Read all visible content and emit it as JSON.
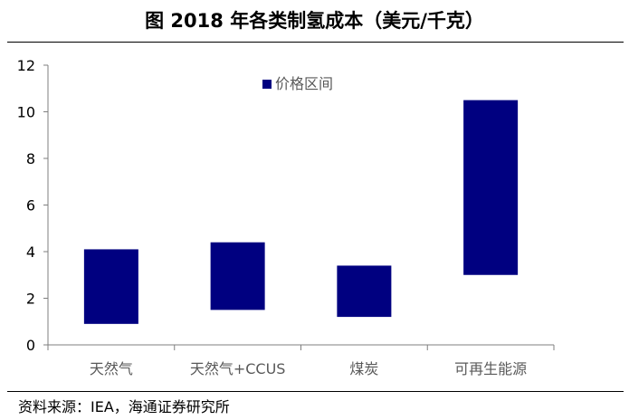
{
  "header": {
    "title": "图    2018 年各类制氢成本（美元/千克）"
  },
  "footer": {
    "source": "资料来源：IEA，海通证券研究所"
  },
  "colors": {
    "bar": "#000080",
    "axis": "#7f7f7f",
    "category_text": "#595959"
  },
  "chart_data": {
    "type": "bar",
    "subtype": "floating-range",
    "title": "2018 年各类制氢成本（美元/千克）",
    "xlabel": "",
    "ylabel": "",
    "ylim": [
      0,
      12
    ],
    "yticks": [
      0,
      2,
      4,
      6,
      8,
      10,
      12
    ],
    "grid": false,
    "legend_position": "top-center",
    "categories": [
      "天然气",
      "天然气+CCUS",
      "煤炭",
      "可再生能源"
    ],
    "series": [
      {
        "name": "价格区间",
        "low": [
          0.9,
          1.5,
          1.2,
          3.0
        ],
        "high": [
          4.1,
          4.4,
          3.4,
          10.5
        ]
      }
    ]
  }
}
